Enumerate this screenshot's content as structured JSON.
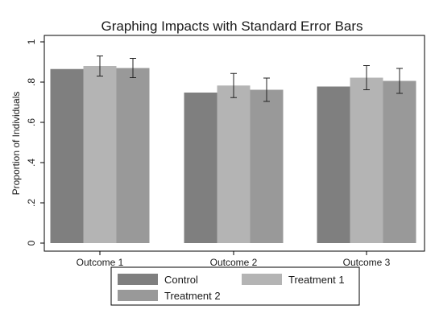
{
  "chart_data": {
    "type": "bar",
    "title": "Graphing Impacts with Standard Error Bars",
    "xlabel": "",
    "ylabel": "Proportion of Individuals",
    "ylim": [
      0,
      1
    ],
    "yticks": [
      0,
      0.2,
      0.4,
      0.6,
      0.8,
      1
    ],
    "ytick_labels": [
      "0",
      ".2",
      ".4",
      ".6",
      ".8",
      "1"
    ],
    "categories": [
      "Outcome 1",
      "Outcome 2",
      "Outcome 3"
    ],
    "series": [
      {
        "name": "Control",
        "values": [
          0.865,
          0.748,
          0.778
        ],
        "errors": null,
        "color": "#7f7f7f"
      },
      {
        "name": "Treatment 1",
        "values": [
          0.88,
          0.783,
          0.822
        ],
        "errors": [
          0.05,
          0.06,
          0.06
        ],
        "color": "#b4b4b4"
      },
      {
        "name": "Treatment 2",
        "values": [
          0.87,
          0.762,
          0.806
        ],
        "errors": [
          0.048,
          0.058,
          0.062
        ],
        "color": "#999999"
      }
    ],
    "grid": false,
    "legend_position": "bottom"
  }
}
